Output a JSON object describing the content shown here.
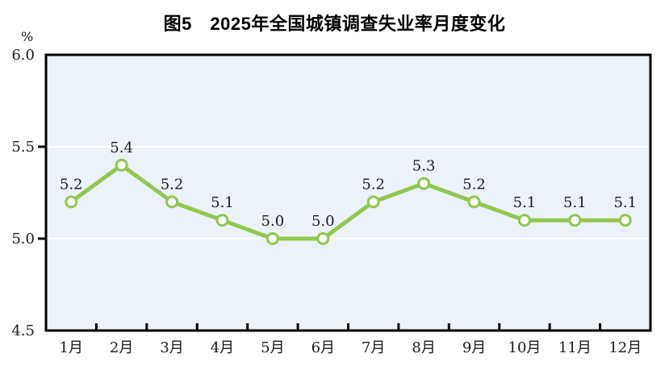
{
  "chart_data": {
    "type": "line",
    "title": "图5　2025年全国城镇调查失业率月度变化",
    "unit_label": "%",
    "categories": [
      "1月",
      "2月",
      "3月",
      "4月",
      "5月",
      "6月",
      "7月",
      "8月",
      "9月",
      "10月",
      "11月",
      "12月"
    ],
    "values": [
      5.2,
      5.4,
      5.2,
      5.1,
      5.0,
      5.0,
      5.2,
      5.3,
      5.2,
      5.1,
      5.1,
      5.1
    ],
    "data_labels": [
      "5.2",
      "5.4",
      "5.2",
      "5.1",
      "5.0",
      "5.0",
      "5.2",
      "5.3",
      "5.2",
      "5.1",
      "5.1",
      "5.1"
    ],
    "xlabel": "",
    "ylabel": "%",
    "ylim": [
      4.5,
      6.0
    ],
    "y_ticks": [
      "6.0",
      "5.5",
      "5.0",
      "4.5"
    ],
    "gridlines_at": [
      5.5,
      5.0
    ],
    "grid": true,
    "legend": "none",
    "colors": {
      "line": "#90c850",
      "marker_fill": "#ffffff",
      "plot_bg": "#ecf2f7",
      "gridline": "#ffffff",
      "axis": "#000000",
      "text": "#1a1a1a"
    }
  }
}
